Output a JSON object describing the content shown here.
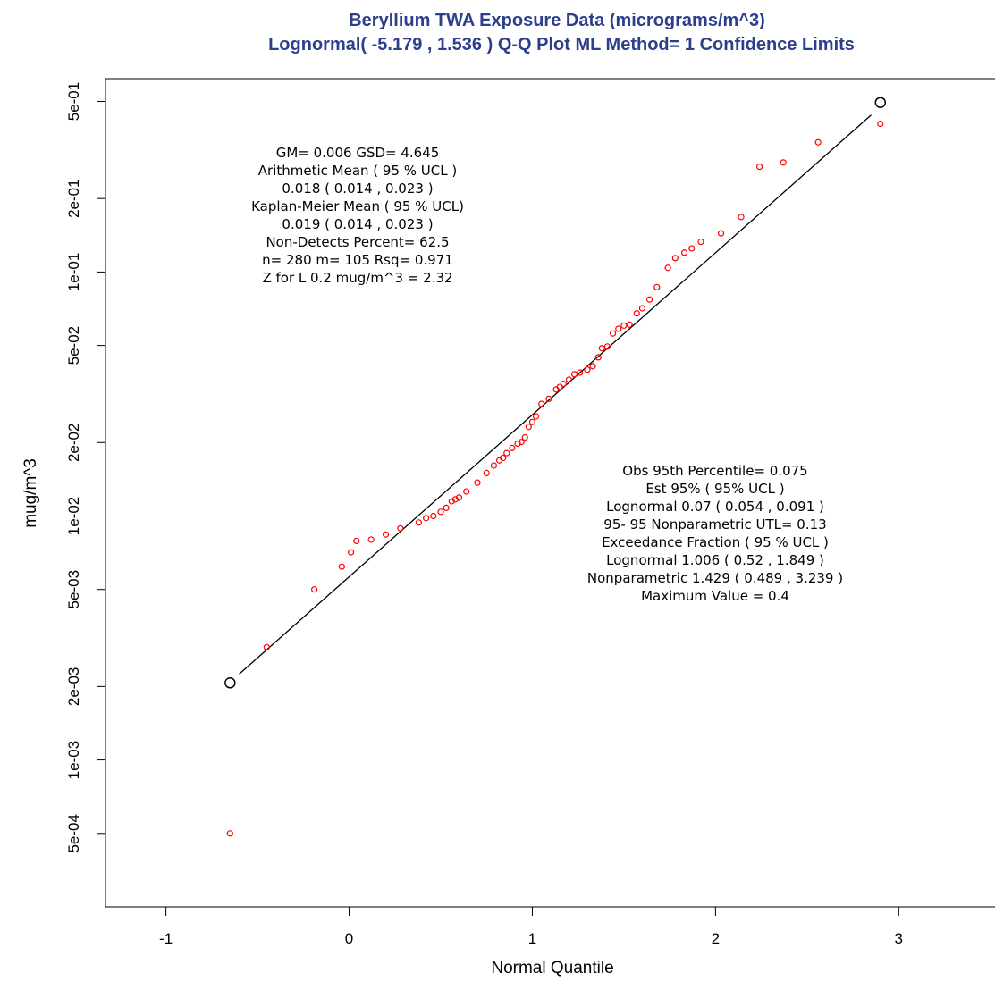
{
  "chart_data": {
    "type": "scatter",
    "title": "Beryllium TWA Exposure Data (micrograms/m^3)",
    "subtitle": "Lognormal( -5.179 , 1.536 )   Q-Q Plot ML Method= 1 Confidence Limits",
    "xlabel": "Normal Quantile",
    "ylabel": "mug/m^3",
    "xlim": [
      -1.33,
      3.55
    ],
    "ylim": [
      0.00025,
      0.62
    ],
    "yscale": "log",
    "xticks": [
      {
        "value": -1,
        "label": "-1"
      },
      {
        "value": 0,
        "label": "0"
      },
      {
        "value": 1,
        "label": "1"
      },
      {
        "value": 2,
        "label": "2"
      },
      {
        "value": 3,
        "label": "3"
      }
    ],
    "yticks": [
      {
        "value": 0.0005,
        "label": "5e-04"
      },
      {
        "value": 0.001,
        "label": "1e-03"
      },
      {
        "value": 0.002,
        "label": "2e-03"
      },
      {
        "value": 0.005,
        "label": "5e-03"
      },
      {
        "value": 0.01,
        "label": "1e-02"
      },
      {
        "value": 0.02,
        "label": "2e-02"
      },
      {
        "value": 0.05,
        "label": "5e-02"
      },
      {
        "value": 0.1,
        "label": "1e-01"
      },
      {
        "value": 0.2,
        "label": "2e-01"
      },
      {
        "value": 0.5,
        "label": "5e-01"
      }
    ],
    "grid": false,
    "point_color": "#ff0000",
    "line_color": "#000000",
    "fit_line": {
      "x": [
        -0.6,
        2.85
      ],
      "y": [
        0.00225,
        0.44
      ]
    },
    "confidence_markers": [
      {
        "x": -0.65,
        "y": 0.00207
      },
      {
        "x": 2.9,
        "y": 0.495
      }
    ],
    "points": [
      {
        "x": -0.65,
        "y": 0.0005
      },
      {
        "x": -0.45,
        "y": 0.0029
      },
      {
        "x": -0.19,
        "y": 0.005
      },
      {
        "x": -0.04,
        "y": 0.0062
      },
      {
        "x": 0.01,
        "y": 0.0071
      },
      {
        "x": 0.04,
        "y": 0.0079
      },
      {
        "x": 0.12,
        "y": 0.008
      },
      {
        "x": 0.2,
        "y": 0.0084
      },
      {
        "x": 0.28,
        "y": 0.0089
      },
      {
        "x": 0.38,
        "y": 0.0094
      },
      {
        "x": 0.42,
        "y": 0.0098
      },
      {
        "x": 0.46,
        "y": 0.01
      },
      {
        "x": 0.5,
        "y": 0.0104
      },
      {
        "x": 0.53,
        "y": 0.0108
      },
      {
        "x": 0.56,
        "y": 0.0115
      },
      {
        "x": 0.58,
        "y": 0.0117
      },
      {
        "x": 0.6,
        "y": 0.0119
      },
      {
        "x": 0.64,
        "y": 0.0126
      },
      {
        "x": 0.7,
        "y": 0.0137
      },
      {
        "x": 0.75,
        "y": 0.015
      },
      {
        "x": 0.79,
        "y": 0.0161
      },
      {
        "x": 0.82,
        "y": 0.0169
      },
      {
        "x": 0.84,
        "y": 0.0173
      },
      {
        "x": 0.86,
        "y": 0.0181
      },
      {
        "x": 0.89,
        "y": 0.019
      },
      {
        "x": 0.92,
        "y": 0.0198
      },
      {
        "x": 0.94,
        "y": 0.0201
      },
      {
        "x": 0.96,
        "y": 0.021
      },
      {
        "x": 0.98,
        "y": 0.0232
      },
      {
        "x": 1.0,
        "y": 0.0243
      },
      {
        "x": 1.02,
        "y": 0.0256
      },
      {
        "x": 1.05,
        "y": 0.0288
      },
      {
        "x": 1.09,
        "y": 0.0302
      },
      {
        "x": 1.13,
        "y": 0.033
      },
      {
        "x": 1.15,
        "y": 0.0338
      },
      {
        "x": 1.17,
        "y": 0.0348
      },
      {
        "x": 1.2,
        "y": 0.0362
      },
      {
        "x": 1.23,
        "y": 0.0381
      },
      {
        "x": 1.26,
        "y": 0.0387
      },
      {
        "x": 1.3,
        "y": 0.0398
      },
      {
        "x": 1.33,
        "y": 0.0411
      },
      {
        "x": 1.36,
        "y": 0.0447
      },
      {
        "x": 1.38,
        "y": 0.0487
      },
      {
        "x": 1.41,
        "y": 0.0495
      },
      {
        "x": 1.44,
        "y": 0.056
      },
      {
        "x": 1.47,
        "y": 0.0585
      },
      {
        "x": 1.5,
        "y": 0.0603
      },
      {
        "x": 1.53,
        "y": 0.0609
      },
      {
        "x": 1.57,
        "y": 0.0677
      },
      {
        "x": 1.6,
        "y": 0.071
      },
      {
        "x": 1.64,
        "y": 0.0771
      },
      {
        "x": 1.68,
        "y": 0.0867
      },
      {
        "x": 1.74,
        "y": 0.104
      },
      {
        "x": 1.78,
        "y": 0.114
      },
      {
        "x": 1.83,
        "y": 0.12
      },
      {
        "x": 1.87,
        "y": 0.125
      },
      {
        "x": 1.92,
        "y": 0.133
      },
      {
        "x": 2.03,
        "y": 0.144
      },
      {
        "x": 2.14,
        "y": 0.168
      },
      {
        "x": 2.24,
        "y": 0.27
      },
      {
        "x": 2.37,
        "y": 0.281
      },
      {
        "x": 2.56,
        "y": 0.34
      },
      {
        "x": 2.9,
        "y": 0.405
      }
    ],
    "annotations_left": [
      "GM=  0.006 GSD=  4.645",
      "Arithmetic Mean (  95 % UCL )",
      "0.018   ( 0.014 , 0.023  )",
      "Kaplan-Meier Mean ( 95 % UCL)",
      "0.019   ( 0.014 , 0.023  )",
      "Non-Detects Percent=  62.5",
      "n= 280  m= 105 Rsq= 0.971",
      "Z for L 0.2 mug/m^3  =    2.32"
    ],
    "annotations_right": [
      "Obs 95th Percentile= 0.075",
      "Est 95% ( 95% UCL )",
      "Lognormal  0.07   ( 0.054 , 0.091  )",
      "95- 95 Nonparametric  UTL=   0.13",
      "Exceedance Fraction (  95 % UCL )",
      "Lognormal  1.006   ( 0.52 , 1.849  )",
      "Nonparametric  1.429   ( 0.489 , 3.239  )",
      "Maximum Value =  0.4"
    ]
  }
}
